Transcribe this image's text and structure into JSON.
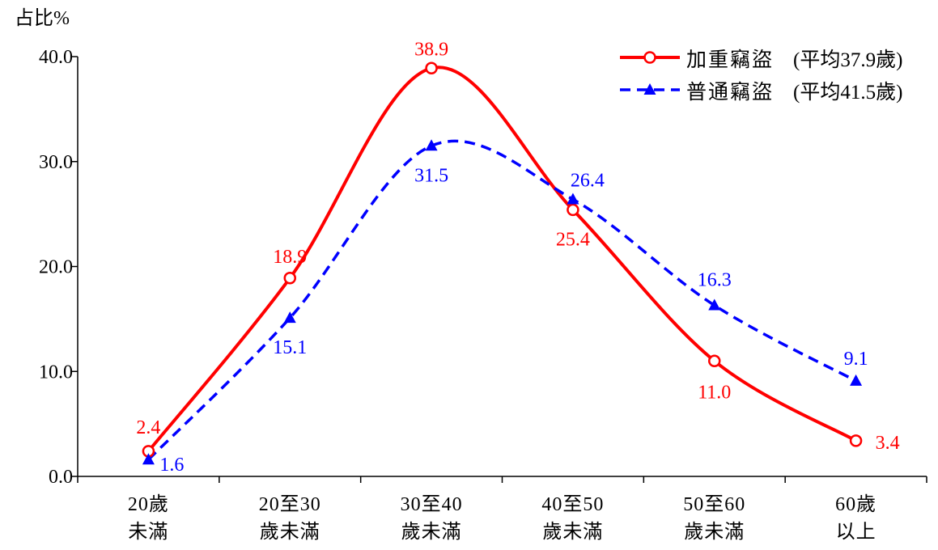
{
  "chart_data": {
    "type": "line",
    "ylabel": "占比%",
    "xlabel": "",
    "ylim": [
      0,
      40
    ],
    "yticks": [
      0,
      10,
      20,
      30,
      40
    ],
    "ytick_labels": [
      "0.0",
      "10.0",
      "20.0",
      "30.0",
      "40.0"
    ],
    "categories": [
      [
        "20歲",
        "未滿"
      ],
      [
        "20至30",
        "歲未滿"
      ],
      [
        "30至40",
        "歲未滿"
      ],
      [
        "40至50",
        "歲未滿"
      ],
      [
        "50至60",
        "歲未滿"
      ],
      [
        "60歲",
        "以上"
      ]
    ],
    "legend_position": "top-right",
    "series": [
      {
        "name": "加重竊盜",
        "legend_note": "(平均37.9歲)",
        "color": "#ff0000",
        "line_style": "solid",
        "marker": "open-circle",
        "values": [
          2.4,
          18.9,
          38.9,
          25.4,
          11.0,
          3.4
        ],
        "labels": [
          "2.4",
          "18.9",
          "38.9",
          "25.4",
          "11.0",
          "3.4"
        ]
      },
      {
        "name": "普通竊盜",
        "legend_note": "(平均41.5歲)",
        "color": "#0000ff",
        "line_style": "dashed",
        "marker": "filled-triangle",
        "values": [
          1.6,
          15.1,
          31.5,
          26.4,
          16.3,
          9.1
        ],
        "labels": [
          "1.6",
          "15.1",
          "31.5",
          "26.4",
          "16.3",
          "9.1"
        ]
      }
    ]
  }
}
